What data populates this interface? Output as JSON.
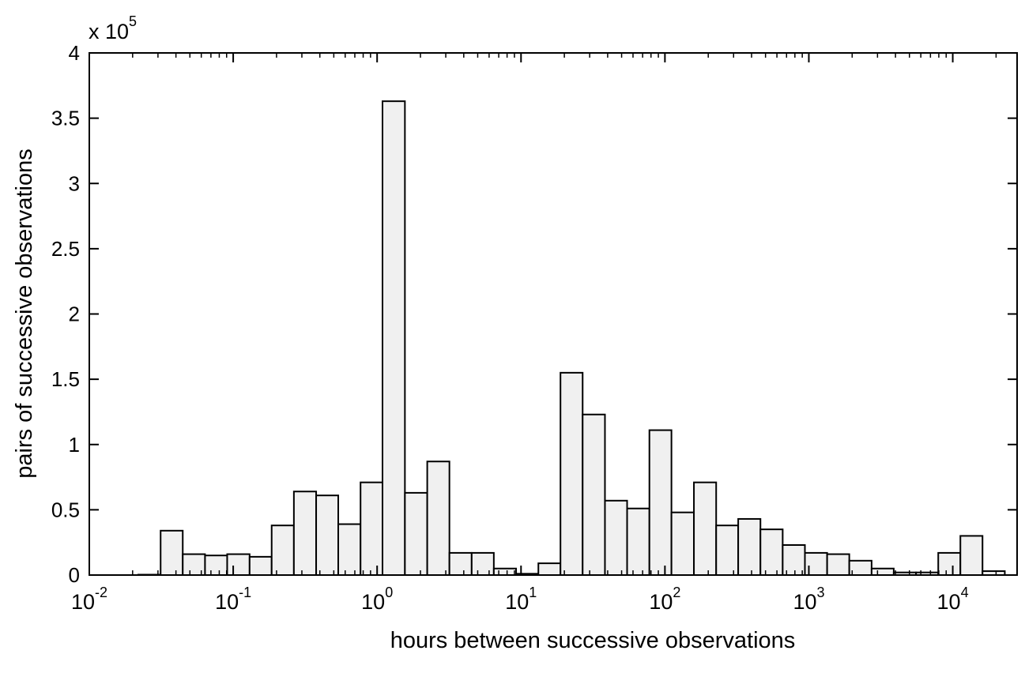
{
  "chart_data": {
    "type": "histogram",
    "x_label": "hours between successive observations",
    "y_label": "pairs of successive observations",
    "y_multiplier": {
      "base": "x 10",
      "exponent": "5"
    },
    "bins": [
      0.0219,
      0.0313,
      0.0446,
      0.0637,
      0.0908,
      0.13,
      0.185,
      0.264,
      0.377,
      0.537,
      0.767,
      1.09,
      1.56,
      2.23,
      3.18,
      4.54,
      6.47,
      9.24,
      13.2,
      18.8,
      26.8,
      38.3,
      54.6,
      78.0,
      111,
      159,
      227,
      323,
      461,
      658,
      939,
      1340,
      1910,
      2730,
      3890,
      5560,
      7930,
      11300,
      16100,
      23000
    ],
    "values": [
      0.003,
      0.34,
      0.16,
      0.15,
      0.16,
      0.14,
      0.38,
      0.64,
      0.61,
      0.39,
      0.71,
      3.63,
      0.63,
      0.87,
      0.17,
      0.17,
      0.05,
      0.01,
      0.09,
      1.55,
      1.23,
      0.57,
      0.51,
      1.11,
      0.48,
      0.71,
      0.38,
      0.43,
      0.35,
      0.23,
      0.17,
      0.16,
      0.11,
      0.05,
      0.02,
      0.02,
      0.17,
      0.3,
      0.03
    ],
    "color": "#f0f0f0",
    "edge_color": "#000000",
    "x_log": true,
    "xlim": [
      0.01,
      28000
    ],
    "xticks": [
      {
        "value": 0.01,
        "label": "10",
        "exponent": "-2"
      },
      {
        "value": 0.1,
        "label": "10",
        "exponent": "-1"
      },
      {
        "value": 1,
        "label": "10",
        "exponent": "0"
      },
      {
        "value": 10,
        "label": "10",
        "exponent": "1"
      },
      {
        "value": 100,
        "label": "10",
        "exponent": "2"
      },
      {
        "value": 1000,
        "label": "10",
        "exponent": "3"
      },
      {
        "value": 10000,
        "label": "10",
        "exponent": "4"
      }
    ],
    "ylim": [
      0,
      4
    ],
    "yticks": [
      0,
      0.5,
      1,
      1.5,
      2,
      2.5,
      3,
      3.5,
      4
    ],
    "grid": false
  }
}
